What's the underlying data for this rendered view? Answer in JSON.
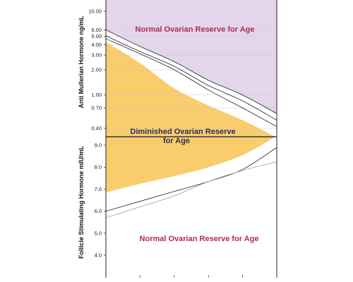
{
  "chart_data": {
    "type": "area",
    "colors": {
      "normal_region": "#e3d6ea",
      "diminished_region": "#f9cc6c",
      "divider_line": "#2f3452",
      "reference_line": "#222222",
      "reference_line_light": "#9a9a9a",
      "label_red": "#b22a55",
      "label_navy": "#2a2f55"
    },
    "top_panel": {
      "ylabel": "Anti Mullerian Hormone ng/mL",
      "ytick_labels": [
        "10.00",
        "6.00",
        "5.00",
        "4.00",
        "3.00",
        "2.00",
        "1.00",
        "0.70",
        "0.40"
      ],
      "ytick_values": [
        10.0,
        6.0,
        5.0,
        4.0,
        3.0,
        2.0,
        1.0,
        0.7,
        0.4
      ],
      "scale": "log",
      "ylim": [
        0.3,
        12
      ],
      "x": [
        0,
        1,
        2,
        3,
        4,
        5
      ],
      "lines": [
        [
          6.0,
          3.8,
          2.5,
          1.5,
          1.0,
          0.6
        ],
        [
          5.1,
          3.3,
          2.2,
          1.3,
          0.85,
          0.5
        ],
        [
          4.7,
          3.1,
          2.0,
          1.15,
          0.7,
          0.42
        ]
      ],
      "diminished_upper": [
        4.3,
        2.4,
        1.2,
        0.75,
        0.5,
        0.3
      ],
      "region_label": "Normal Ovarian Reserve for Age"
    },
    "bottom_panel": {
      "ylabel": "Follicle Stimulating Hormone mIU/mL",
      "ytick_labels": [
        "9.0",
        "8.0",
        "7.0",
        "6.0",
        "5.0",
        "4.0"
      ],
      "ytick_values": [
        9.0,
        8.0,
        7.0,
        6.0,
        5.0,
        4.0
      ],
      "ylim": [
        3.0,
        9.5
      ],
      "x": [
        0,
        1,
        2,
        3,
        4,
        5
      ],
      "diminished_lower": [
        6.85,
        7.25,
        7.6,
        8.0,
        8.55,
        9.3
      ],
      "lines": [
        [
          6.0,
          6.45,
          6.9,
          7.35,
          7.9,
          8.9
        ],
        [
          5.7,
          6.2,
          6.7,
          7.35,
          7.85,
          8.25
        ]
      ],
      "light_line_index": 1,
      "region_label": "Normal Ovarian Reserve for Age"
    },
    "center_label": [
      "Diminished Ovarian Reserve",
      "for Age"
    ]
  }
}
